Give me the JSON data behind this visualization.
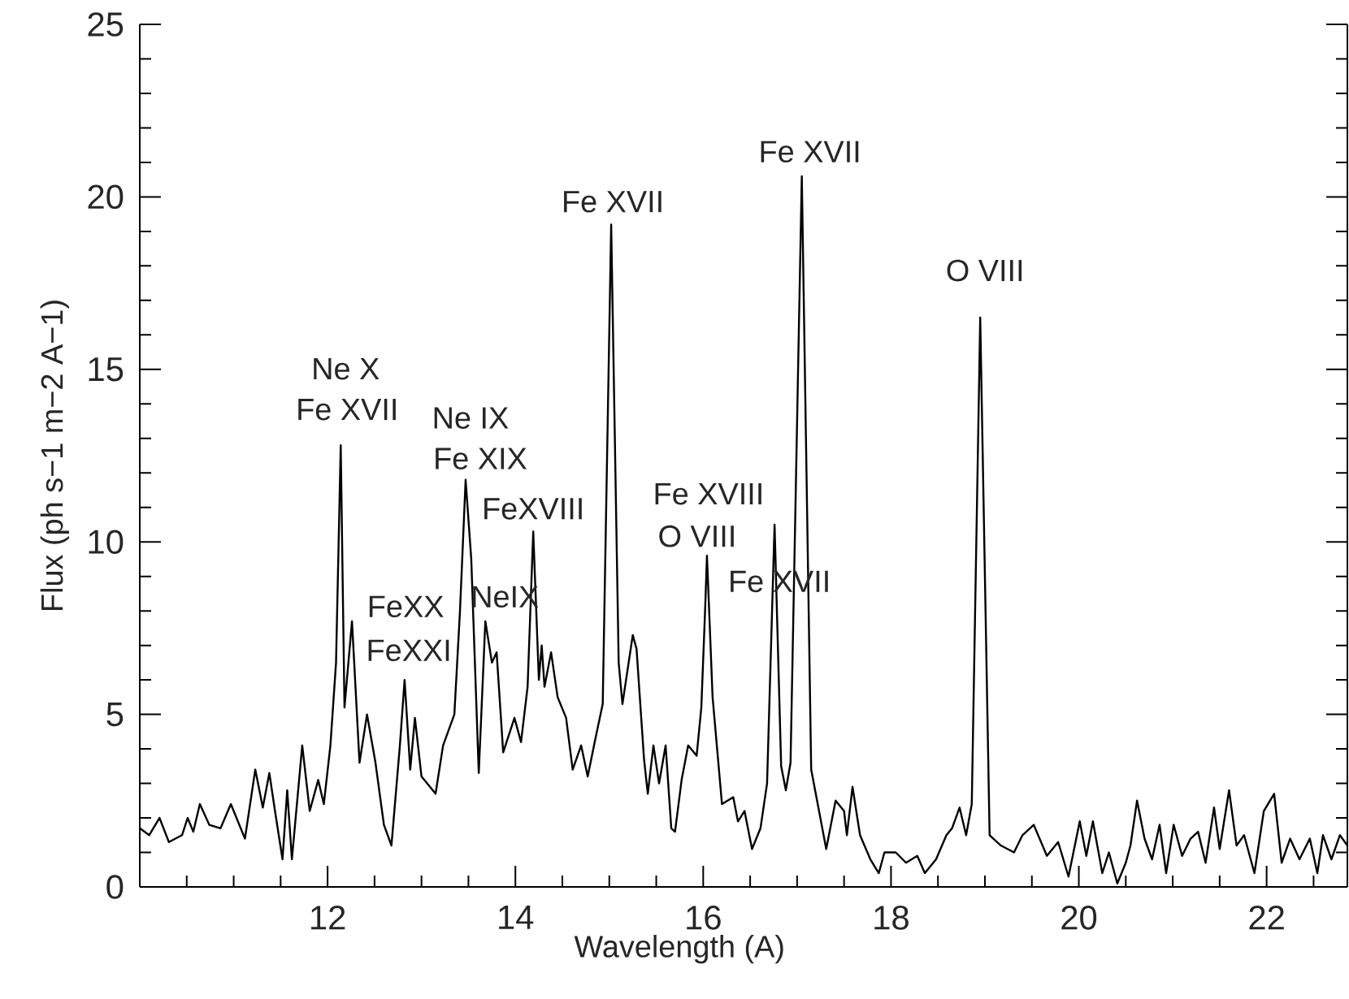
{
  "chart_data": {
    "type": "line",
    "xlabel": "Wavelength (A)",
    "ylabel": "Flux (ph s−1 m−2 A−1)",
    "xlim": [
      10,
      22.86
    ],
    "xticks": [
      12,
      14,
      16,
      18,
      20,
      22
    ],
    "ylim": [
      0,
      25
    ],
    "yticks": [
      0,
      5,
      10,
      15,
      20,
      25
    ],
    "x": [
      10.0,
      10.1,
      10.21,
      10.31,
      10.45,
      10.51,
      10.57,
      10.64,
      10.74,
      10.86,
      10.97,
      11.12,
      11.23,
      11.31,
      11.38,
      11.44,
      11.52,
      11.57,
      11.62,
      11.73,
      11.81,
      11.9,
      11.96,
      12.03,
      12.09,
      12.14,
      12.18,
      12.26,
      12.34,
      12.42,
      12.51,
      12.6,
      12.68,
      12.77,
      12.82,
      12.88,
      12.93,
      13.0,
      13.15,
      13.23,
      13.35,
      13.41,
      13.47,
      13.53,
      13.61,
      13.68,
      13.75,
      13.8,
      13.87,
      13.99,
      14.06,
      14.13,
      14.19,
      14.25,
      14.28,
      14.31,
      14.38,
      14.45,
      14.54,
      14.61,
      14.7,
      14.77,
      14.86,
      14.93,
      15.02,
      15.1,
      15.14,
      15.25,
      15.29,
      15.37,
      15.41,
      15.47,
      15.53,
      15.6,
      15.66,
      15.7,
      15.77,
      15.84,
      15.93,
      15.98,
      16.02,
      16.04,
      16.1,
      16.2,
      16.32,
      16.37,
      16.44,
      16.52,
      16.61,
      16.68,
      16.76,
      16.83,
      16.88,
      16.93,
      17.05,
      17.15,
      17.31,
      17.41,
      17.5,
      17.53,
      17.59,
      17.67,
      17.78,
      17.87,
      17.93,
      18.05,
      18.16,
      18.28,
      18.36,
      18.48,
      18.59,
      18.65,
      18.73,
      18.8,
      18.86,
      18.95,
      19.05,
      19.17,
      19.31,
      19.4,
      19.52,
      19.66,
      19.78,
      19.89,
      20.01,
      20.08,
      20.15,
      20.25,
      20.32,
      20.41,
      20.5,
      20.55,
      20.62,
      20.7,
      20.78,
      20.86,
      20.93,
      21.01,
      21.1,
      21.19,
      21.27,
      21.35,
      21.44,
      21.5,
      21.6,
      21.68,
      21.76,
      21.87,
      21.97,
      22.08,
      22.16,
      22.25,
      22.35,
      22.46,
      22.54,
      22.6,
      22.69,
      22.78,
      22.86
    ],
    "series": [
      {
        "color": "#000000",
        "values": [
          1.7,
          1.5,
          2.0,
          1.3,
          1.5,
          2.0,
          1.6,
          2.4,
          1.8,
          1.7,
          2.4,
          1.4,
          3.4,
          2.3,
          3.3,
          2.2,
          0.8,
          2.8,
          0.8,
          4.1,
          2.2,
          3.1,
          2.4,
          4.1,
          6.5,
          12.8,
          5.2,
          7.7,
          3.6,
          5.0,
          3.6,
          1.8,
          1.2,
          4.1,
          6.0,
          3.4,
          4.9,
          3.2,
          2.7,
          4.1,
          5.0,
          8.0,
          11.8,
          9.5,
          3.3,
          7.7,
          6.5,
          6.8,
          3.9,
          4.9,
          4.2,
          5.8,
          10.3,
          6.0,
          7.0,
          5.8,
          6.8,
          5.5,
          4.9,
          3.4,
          4.1,
          3.2,
          4.4,
          5.3,
          19.2,
          6.5,
          5.3,
          7.3,
          6.9,
          3.7,
          2.7,
          4.1,
          3.0,
          4.1,
          1.7,
          1.6,
          3.1,
          4.1,
          3.8,
          5.2,
          8.0,
          9.6,
          5.5,
          2.4,
          2.6,
          1.9,
          2.2,
          1.1,
          1.7,
          3.0,
          10.5,
          3.5,
          2.8,
          3.6,
          20.6,
          3.4,
          1.1,
          2.5,
          2.2,
          1.5,
          2.9,
          1.5,
          0.8,
          0.4,
          1.0,
          1.0,
          0.7,
          0.9,
          0.4,
          0.8,
          1.5,
          1.7,
          2.3,
          1.5,
          2.4,
          16.5,
          1.5,
          1.2,
          1.0,
          1.5,
          1.8,
          0.9,
          1.3,
          0.3,
          1.9,
          0.9,
          1.9,
          0.4,
          1.0,
          0.1,
          0.7,
          1.2,
          2.5,
          1.4,
          0.8,
          1.8,
          0.4,
          1.8,
          0.9,
          1.4,
          1.6,
          0.7,
          2.3,
          1.1,
          2.8,
          1.2,
          1.5,
          0.4,
          2.2,
          2.7,
          0.7,
          1.4,
          0.8,
          1.4,
          0.4,
          1.5,
          0.8,
          1.5,
          1.2
        ]
      }
    ],
    "annotations": [
      {
        "text": "Ne X",
        "x": 12.14,
        "y": 12.8
      },
      {
        "text": "Fe XVII",
        "x": 12.14,
        "y": 12.8
      },
      {
        "text": "FeXX",
        "x": 12.26,
        "y": 7.7
      },
      {
        "text": "FeXXI",
        "x": 12.26,
        "y": 7.7
      },
      {
        "text": "Ne IX",
        "x": 13.47,
        "y": 11.8
      },
      {
        "text": "Fe XIX",
        "x": 13.47,
        "y": 11.8
      },
      {
        "text": "NeIX",
        "x": 13.68,
        "y": 7.7
      },
      {
        "text": "FeXVIII",
        "x": 14.19,
        "y": 10.3
      },
      {
        "text": "Fe XVII",
        "x": 15.02,
        "y": 19.2
      },
      {
        "text": "Fe XVIII",
        "x": 16.04,
        "y": 9.6
      },
      {
        "text": "O VIII",
        "x": 16.04,
        "y": 9.6
      },
      {
        "text": "Fe XVII",
        "x": 16.76,
        "y": 10.5
      },
      {
        "text": "Fe XVII",
        "x": 17.05,
        "y": 20.6
      },
      {
        "text": "O VIII",
        "x": 18.95,
        "y": 16.5
      }
    ]
  }
}
